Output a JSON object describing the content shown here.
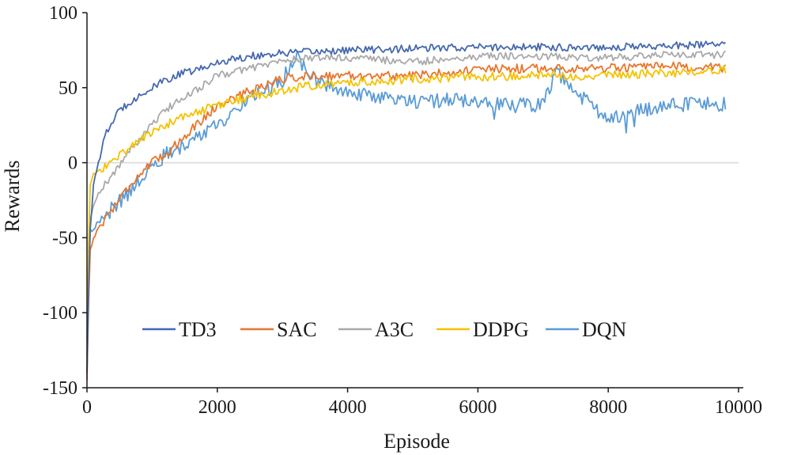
{
  "chart_data": {
    "type": "line",
    "title": "",
    "xlabel": "Episode",
    "ylabel": "Rewards",
    "xlim": [
      0,
      10000
    ],
    "ylim": [
      -150,
      100
    ],
    "xticks": [
      0,
      2000,
      4000,
      6000,
      8000,
      10000
    ],
    "yticks": [
      100,
      50,
      0,
      -50,
      -100,
      -150
    ],
    "x_tick_labels": [
      "0",
      "2000",
      "4000",
      "6000",
      "8000",
      "10000"
    ],
    "y_tick_labels": [
      "100",
      "50",
      "0",
      "-50",
      "-100",
      "-150"
    ],
    "zero_line": true,
    "legend_position": "lower-center",
    "series": [
      {
        "name": "TD3",
        "color": "#4668b0",
        "points": [
          [
            0,
            -140
          ],
          [
            40,
            -50
          ],
          [
            100,
            -15
          ],
          [
            200,
            5
          ],
          [
            300,
            20
          ],
          [
            400,
            28
          ],
          [
            500,
            35
          ],
          [
            700,
            42
          ],
          [
            900,
            47
          ],
          [
            1200,
            55
          ],
          [
            1500,
            60
          ],
          [
            1800,
            63
          ],
          [
            2000,
            67
          ],
          [
            2500,
            71
          ],
          [
            3000,
            73
          ],
          [
            3500,
            74
          ],
          [
            4000,
            75
          ],
          [
            5000,
            76
          ],
          [
            6000,
            77
          ],
          [
            7000,
            77
          ],
          [
            8000,
            77
          ],
          [
            9000,
            78
          ],
          [
            9800,
            79
          ]
        ],
        "noise": 2.5
      },
      {
        "name": "SAC",
        "color": "#e8762c",
        "points": [
          [
            0,
            -145
          ],
          [
            40,
            -60
          ],
          [
            100,
            -50
          ],
          [
            200,
            -42
          ],
          [
            400,
            -30
          ],
          [
            600,
            -18
          ],
          [
            800,
            -8
          ],
          [
            1000,
            0
          ],
          [
            1200,
            5
          ],
          [
            1500,
            18
          ],
          [
            1800,
            30
          ],
          [
            2000,
            38
          ],
          [
            2500,
            48
          ],
          [
            3000,
            56
          ],
          [
            3500,
            58
          ],
          [
            4000,
            58
          ],
          [
            5000,
            58
          ],
          [
            5500,
            60
          ],
          [
            6000,
            62
          ],
          [
            7000,
            63
          ],
          [
            8000,
            63
          ],
          [
            9000,
            64
          ],
          [
            9800,
            63
          ]
        ],
        "noise": 3
      },
      {
        "name": "A3C",
        "color": "#aaaaaa",
        "points": [
          [
            0,
            -130
          ],
          [
            40,
            -40
          ],
          [
            100,
            -28
          ],
          [
            200,
            -18
          ],
          [
            400,
            -8
          ],
          [
            600,
            5
          ],
          [
            800,
            15
          ],
          [
            1000,
            25
          ],
          [
            1200,
            35
          ],
          [
            1500,
            44
          ],
          [
            1800,
            52
          ],
          [
            2000,
            58
          ],
          [
            2500,
            63
          ],
          [
            3000,
            68
          ],
          [
            3500,
            70
          ],
          [
            4000,
            70
          ],
          [
            5000,
            67
          ],
          [
            6000,
            71
          ],
          [
            7000,
            71
          ],
          [
            8000,
            70
          ],
          [
            9000,
            72
          ],
          [
            9800,
            72
          ]
        ],
        "noise": 2.5
      },
      {
        "name": "DDPG",
        "color": "#f5c200",
        "points": [
          [
            0,
            -120
          ],
          [
            40,
            -15
          ],
          [
            100,
            -8
          ],
          [
            300,
            -2
          ],
          [
            500,
            5
          ],
          [
            800,
            15
          ],
          [
            1200,
            25
          ],
          [
            1500,
            31
          ],
          [
            2000,
            38
          ],
          [
            2500,
            44
          ],
          [
            3000,
            48
          ],
          [
            3500,
            52
          ],
          [
            4000,
            53
          ],
          [
            5000,
            56
          ],
          [
            6000,
            57
          ],
          [
            7000,
            58
          ],
          [
            8000,
            58
          ],
          [
            9000,
            60
          ],
          [
            9800,
            62
          ]
        ],
        "noise": 3
      },
      {
        "name": "DQN",
        "color": "#5b9bd5",
        "points": [
          [
            0,
            -140
          ],
          [
            40,
            -45
          ],
          [
            200,
            -40
          ],
          [
            400,
            -30
          ],
          [
            600,
            -22
          ],
          [
            800,
            -12
          ],
          [
            1000,
            -2
          ],
          [
            1200,
            5
          ],
          [
            1500,
            12
          ],
          [
            1800,
            18
          ],
          [
            2000,
            25
          ],
          [
            2500,
            42
          ],
          [
            3000,
            55
          ],
          [
            3200,
            72
          ],
          [
            3500,
            55
          ],
          [
            4000,
            48
          ],
          [
            4500,
            43
          ],
          [
            5000,
            40
          ],
          [
            5500,
            42
          ],
          [
            6000,
            40
          ],
          [
            6500,
            38
          ],
          [
            7000,
            39
          ],
          [
            7200,
            60
          ],
          [
            7500,
            48
          ],
          [
            7800,
            35
          ],
          [
            8000,
            28
          ],
          [
            8500,
            35
          ],
          [
            9000,
            38
          ],
          [
            9500,
            40
          ],
          [
            9800,
            39
          ]
        ],
        "noise": 5
      }
    ]
  }
}
